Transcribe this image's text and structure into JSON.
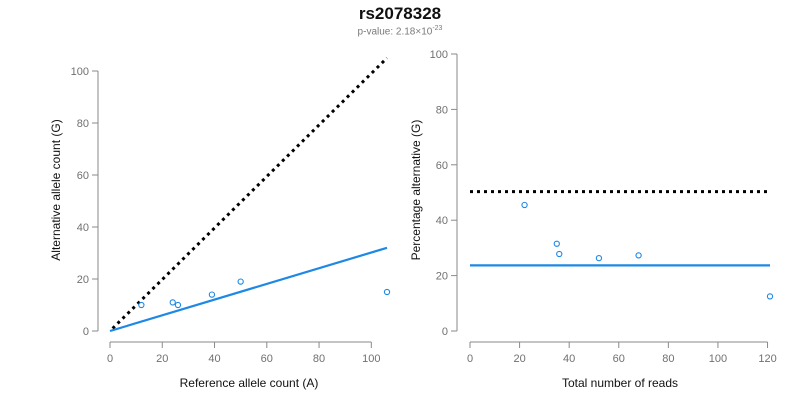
{
  "header": {
    "title": "rs2078328",
    "pvalue_prefix": "p-value: 2.18×10",
    "pvalue_exponent": "-23"
  },
  "chart_data": [
    {
      "type": "scatter",
      "title": "",
      "xlabel": "Reference allele count (A)",
      "ylabel": "Alternative allele count (G)",
      "xlim": [
        0,
        106
      ],
      "ylim": [
        0,
        100
      ],
      "xticks": [
        0,
        20,
        40,
        60,
        80,
        100
      ],
      "yticks": [
        0,
        20,
        40,
        60,
        80,
        100
      ],
      "grid": false,
      "points": [
        {
          "x": 12,
          "y": 10
        },
        {
          "x": 24,
          "y": 11
        },
        {
          "x": 26,
          "y": 10
        },
        {
          "x": 39,
          "y": 14
        },
        {
          "x": 50,
          "y": 19
        },
        {
          "x": 106,
          "y": 15
        }
      ],
      "lines": [
        {
          "style": "dotted",
          "color": "#000000",
          "from": [
            1,
            1
          ],
          "to": [
            106,
            105
          ]
        },
        {
          "style": "solid",
          "color": "#1e88e5",
          "from": [
            0,
            0
          ],
          "to": [
            106,
            32
          ]
        }
      ],
      "point_color": "#1e88e5"
    },
    {
      "type": "scatter",
      "title": "",
      "xlabel": "Total number of reads",
      "ylabel": "Percentage alternative (G)",
      "xlim": [
        0,
        121
      ],
      "ylim": [
        0,
        100
      ],
      "xticks": [
        0,
        20,
        40,
        60,
        80,
        100,
        120
      ],
      "yticks": [
        0,
        20,
        40,
        60,
        80,
        100
      ],
      "grid": false,
      "points": [
        {
          "x": 22,
          "y": 45.5
        },
        {
          "x": 35,
          "y": 31.5
        },
        {
          "x": 36,
          "y": 27.8
        },
        {
          "x": 52,
          "y": 26.3
        },
        {
          "x": 68,
          "y": 27.3
        },
        {
          "x": 121,
          "y": 12.5
        }
      ],
      "lines": [
        {
          "style": "dotted",
          "color": "#000000",
          "from": [
            0,
            50.3
          ],
          "to": [
            120,
            50.3
          ]
        },
        {
          "style": "solid",
          "color": "#1e88e5",
          "from": [
            0,
            23.7
          ],
          "to": [
            121,
            23.7
          ]
        }
      ],
      "point_color": "#1e88e5"
    }
  ]
}
